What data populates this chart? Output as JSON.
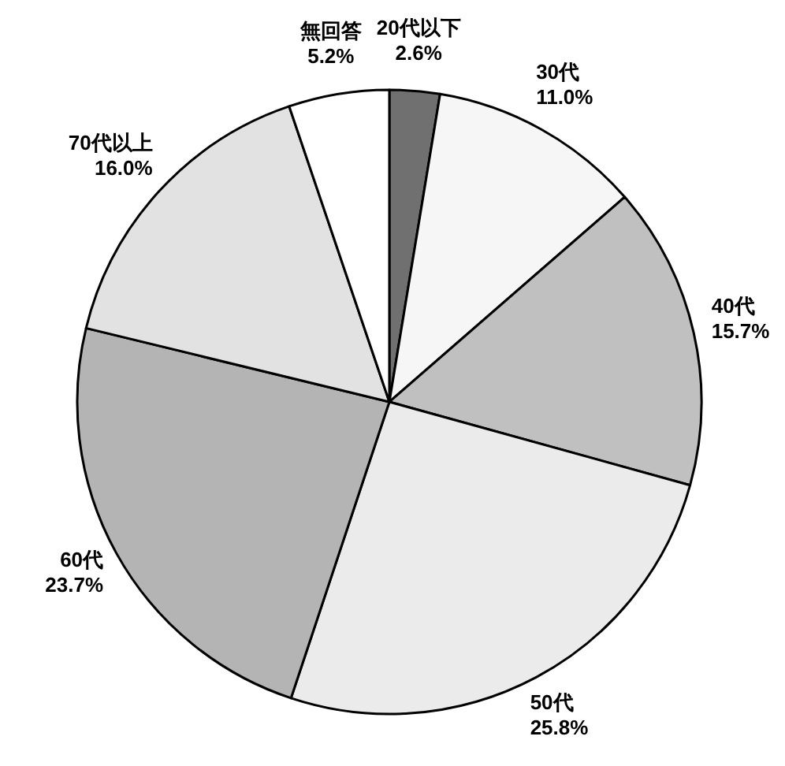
{
  "chart_data": {
    "type": "pie",
    "categories": [
      "20代以下",
      "30代",
      "40代",
      "50代",
      "60代",
      "70代以上",
      "無回答"
    ],
    "values": [
      2.6,
      11.0,
      15.7,
      25.8,
      23.7,
      16.0,
      5.2
    ],
    "value_labels": [
      "2.6%",
      "11.0%",
      "15.7%",
      "25.8%",
      "23.7%",
      "16.0%",
      "5.2%"
    ],
    "colors": [
      "#707070",
      "#f6f6f6",
      "#c0c0c0",
      "#ebebeb",
      "#b4b4b4",
      "#e2e2e2",
      "#ffffff"
    ]
  }
}
